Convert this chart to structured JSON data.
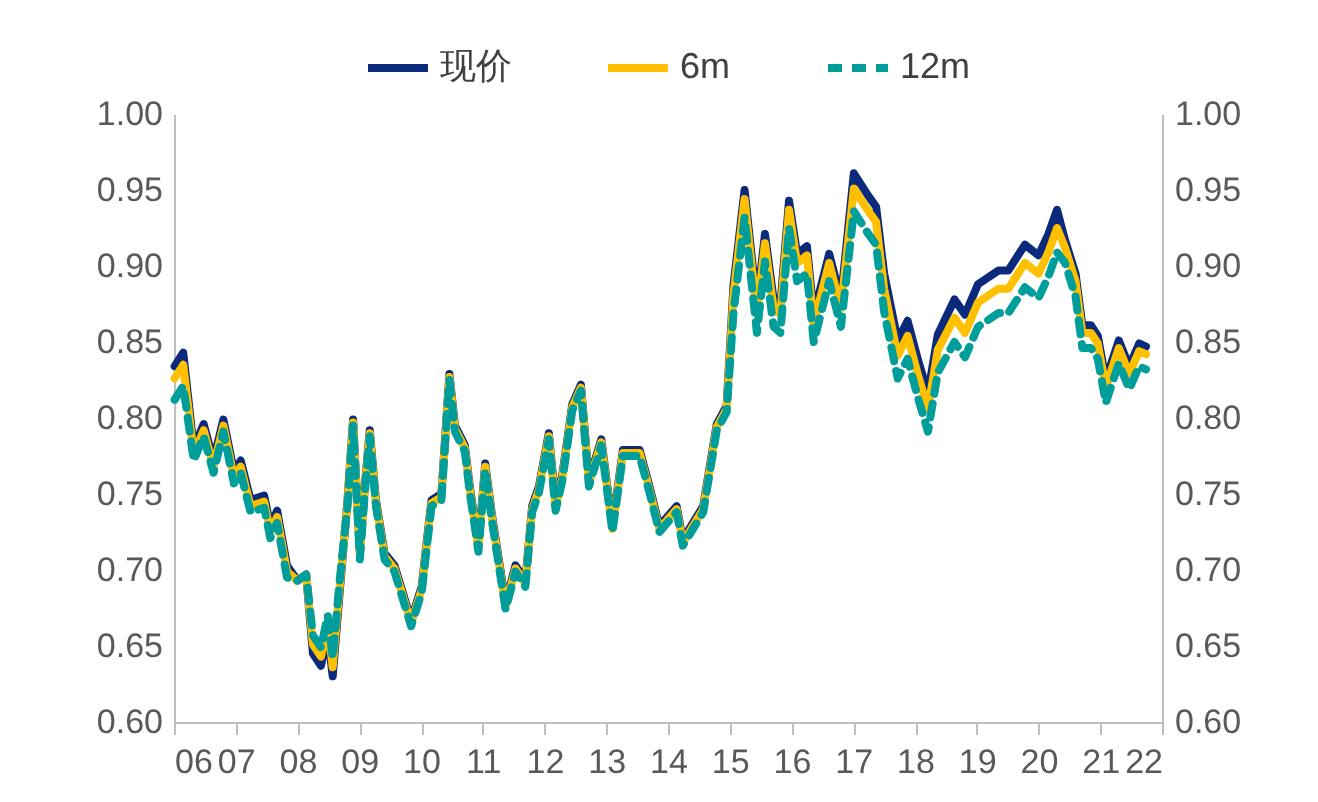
{
  "chart_data": {
    "type": "line",
    "legend": "top",
    "line_style": "solid",
    "x": [
      2006.01,
      2006.15,
      2006.32,
      2006.48,
      2006.64,
      2006.8,
      2006.97,
      2007.08,
      2007.24,
      2007.46,
      2007.56,
      2007.67,
      2007.83,
      2008.0,
      2008.14,
      2008.25,
      2008.38,
      2008.49,
      2008.57,
      2008.68,
      2008.81,
      2008.9,
      2009.01,
      2009.09,
      2009.17,
      2009.27,
      2009.41,
      2009.57,
      2009.84,
      2010.01,
      2010.17,
      2010.33,
      2010.46,
      2010.55,
      2010.71,
      2010.79,
      2010.93,
      2011.04,
      2011.15,
      2011.37,
      2011.53,
      2011.69,
      2011.8,
      2011.91,
      2012.07,
      2012.18,
      2012.29,
      2012.45,
      2012.59,
      2012.72,
      2012.92,
      2013.1,
      2013.27,
      2013.54,
      2013.7,
      2013.86,
      2014.14,
      2014.24,
      2014.57,
      2014.79,
      2014.95,
      2015.06,
      2015.24,
      2015.44,
      2015.57,
      2015.71,
      2015.82,
      2015.96,
      2016.09,
      2016.25,
      2016.36,
      2016.61,
      2016.8,
      2017.01,
      2017.23,
      2017.37,
      2017.5,
      2017.72,
      2017.88,
      2018.05,
      2018.21,
      2018.37,
      2018.64,
      2018.81,
      2019.02,
      2019.35,
      2019.51,
      2019.78,
      2020.0,
      2020.16,
      2020.3,
      2020.43,
      2020.6,
      2020.71,
      2020.85,
      2020.96,
      2021.09,
      2021.3,
      2021.47,
      2021.63,
      2021.74
    ],
    "series": [
      {
        "name": "现价",
        "color": "#0b2a7c",
        "values": [
          0.834,
          0.843,
          0.78,
          0.796,
          0.772,
          0.799,
          0.765,
          0.772,
          0.746,
          0.749,
          0.729,
          0.739,
          0.703,
          0.693,
          0.697,
          0.645,
          0.637,
          0.658,
          0.63,
          0.684,
          0.746,
          0.799,
          0.711,
          0.755,
          0.792,
          0.746,
          0.711,
          0.703,
          0.667,
          0.689,
          0.746,
          0.75,
          0.829,
          0.795,
          0.782,
          0.755,
          0.716,
          0.77,
          0.736,
          0.678,
          0.703,
          0.693,
          0.742,
          0.755,
          0.79,
          0.743,
          0.763,
          0.809,
          0.822,
          0.759,
          0.786,
          0.729,
          0.779,
          0.779,
          0.755,
          0.729,
          0.742,
          0.72,
          0.742,
          0.796,
          0.808,
          0.887,
          0.95,
          0.874,
          0.921,
          0.878,
          0.874,
          0.943,
          0.908,
          0.913,
          0.868,
          0.908,
          0.878,
          0.961,
          0.947,
          0.939,
          0.895,
          0.851,
          0.864,
          0.838,
          0.816,
          0.855,
          0.878,
          0.868,
          0.888,
          0.897,
          0.897,
          0.914,
          0.907,
          0.921,
          0.937,
          0.917,
          0.895,
          0.861,
          0.861,
          0.854,
          0.825,
          0.851,
          0.834,
          0.849,
          0.847
        ]
      },
      {
        "name": "6m",
        "color": "#ffc000",
        "values": [
          0.826,
          0.835,
          0.776,
          0.792,
          0.768,
          0.795,
          0.761,
          0.768,
          0.742,
          0.745,
          0.725,
          0.735,
          0.699,
          0.693,
          0.697,
          0.651,
          0.643,
          0.664,
          0.636,
          0.688,
          0.744,
          0.797,
          0.709,
          0.753,
          0.79,
          0.744,
          0.709,
          0.701,
          0.665,
          0.687,
          0.744,
          0.748,
          0.827,
          0.793,
          0.78,
          0.753,
          0.714,
          0.768,
          0.734,
          0.676,
          0.701,
          0.691,
          0.74,
          0.753,
          0.788,
          0.741,
          0.761,
          0.807,
          0.82,
          0.757,
          0.784,
          0.727,
          0.777,
          0.777,
          0.753,
          0.727,
          0.74,
          0.718,
          0.74,
          0.794,
          0.806,
          0.881,
          0.944,
          0.868,
          0.915,
          0.872,
          0.868,
          0.937,
          0.902,
          0.907,
          0.862,
          0.902,
          0.872,
          0.951,
          0.937,
          0.929,
          0.885,
          0.841,
          0.854,
          0.828,
          0.806,
          0.845,
          0.866,
          0.856,
          0.876,
          0.885,
          0.885,
          0.902,
          0.895,
          0.909,
          0.925,
          0.912,
          0.89,
          0.856,
          0.856,
          0.849,
          0.82,
          0.846,
          0.829,
          0.844,
          0.842
        ]
      },
      {
        "name": "12m",
        "color": "#009e9a",
        "line_style": "dashed",
        "values": [
          0.812,
          0.821,
          0.772,
          0.788,
          0.764,
          0.791,
          0.757,
          0.764,
          0.738,
          0.741,
          0.721,
          0.731,
          0.695,
          0.693,
          0.697,
          0.657,
          0.649,
          0.67,
          0.642,
          0.692,
          0.742,
          0.795,
          0.707,
          0.751,
          0.788,
          0.742,
          0.707,
          0.699,
          0.663,
          0.685,
          0.742,
          0.746,
          0.825,
          0.791,
          0.778,
          0.751,
          0.712,
          0.766,
          0.732,
          0.674,
          0.699,
          0.689,
          0.738,
          0.751,
          0.786,
          0.739,
          0.759,
          0.805,
          0.818,
          0.755,
          0.782,
          0.725,
          0.775,
          0.775,
          0.751,
          0.725,
          0.738,
          0.716,
          0.738,
          0.792,
          0.804,
          0.869,
          0.932,
          0.856,
          0.903,
          0.86,
          0.856,
          0.925,
          0.89,
          0.895,
          0.85,
          0.89,
          0.86,
          0.936,
          0.922,
          0.914,
          0.87,
          0.826,
          0.839,
          0.813,
          0.791,
          0.83,
          0.85,
          0.84,
          0.86,
          0.869,
          0.869,
          0.886,
          0.879,
          0.893,
          0.909,
          0.902,
          0.88,
          0.846,
          0.846,
          0.839,
          0.81,
          0.836,
          0.819,
          0.834,
          0.832
        ]
      }
    ],
    "xlim": [
      2006,
      2022
    ],
    "xticks": [
      {
        "value": 2006,
        "label": "06"
      },
      {
        "value": 2007,
        "label": "07"
      },
      {
        "value": 2008,
        "label": "08"
      },
      {
        "value": 2009,
        "label": "09"
      },
      {
        "value": 2010,
        "label": "10"
      },
      {
        "value": 2011,
        "label": "11"
      },
      {
        "value": 2012,
        "label": "12"
      },
      {
        "value": 2013,
        "label": "13"
      },
      {
        "value": 2014,
        "label": "14"
      },
      {
        "value": 2015,
        "label": "15"
      },
      {
        "value": 2016,
        "label": "16"
      },
      {
        "value": 2017,
        "label": "17"
      },
      {
        "value": 2018,
        "label": "18"
      },
      {
        "value": 2019,
        "label": "19"
      },
      {
        "value": 2020,
        "label": "20"
      },
      {
        "value": 2021,
        "label": "21"
      },
      {
        "value": 2022,
        "label": "22"
      }
    ],
    "ylim": [
      0.6,
      1.0
    ],
    "yticks": [
      {
        "value": 0.6,
        "label": "0.60"
      },
      0.65,
      {
        "value": 0.7,
        "label": "0.70"
      },
      0.75,
      {
        "value": 0.8,
        "label": "0.80"
      },
      0.85,
      {
        "value": 0.9,
        "label": "0.90"
      },
      0.95,
      {
        "value": 1.0,
        "label": "1.00"
      }
    ],
    "y2lim": [
      0.6,
      1.0
    ],
    "y2ticks": [
      {
        "value": 0.6,
        "label": "0.60"
      },
      0.65,
      {
        "value": 0.7,
        "label": "0.70"
      },
      0.75,
      {
        "value": 0.8,
        "label": "0.80"
      },
      0.85,
      {
        "value": 0.9,
        "label": "0.90"
      },
      0.95,
      {
        "value": 1.0,
        "label": "1.00"
      }
    ]
  }
}
